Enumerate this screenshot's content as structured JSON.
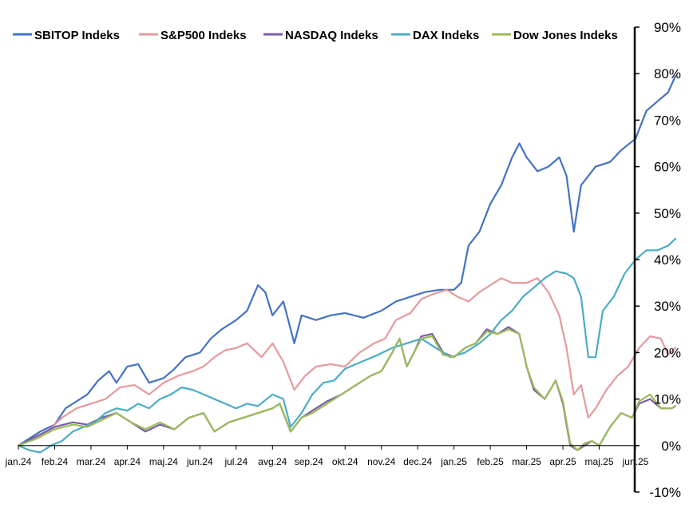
{
  "chart_data": {
    "type": "line",
    "title": "",
    "xlabel": "",
    "ylabel": "",
    "x_tick_labels": [
      "jan.24",
      "feb.24",
      "mar.24",
      "apr.24",
      "maj.24",
      "jun.24",
      "jul.24",
      "avg.24",
      "sep.24",
      "okt.24",
      "nov.24",
      "dec.24",
      "jan.25",
      "feb.25",
      "mar.25",
      "apr.25",
      "maj.25",
      "jun.25"
    ],
    "y_tick_labels": [
      "90%",
      "80%",
      "70%",
      "60%",
      "50%",
      "40%",
      "30%",
      "20%",
      "10%",
      "0%",
      "-10%"
    ],
    "ylim": [
      -10,
      90
    ],
    "y_unit": "%",
    "y_axis_position": "right",
    "legend_position": "top",
    "grid": false,
    "series": [
      {
        "name": "SBITOP Indeks",
        "color": "#4472C4",
        "points": [
          [
            0,
            0
          ],
          [
            0.3,
            1.5
          ],
          [
            0.6,
            3
          ],
          [
            1,
            4.5
          ],
          [
            1.3,
            8
          ],
          [
            1.6,
            9.5
          ],
          [
            1.9,
            11
          ],
          [
            2.2,
            14
          ],
          [
            2.5,
            16
          ],
          [
            2.7,
            13.5
          ],
          [
            3,
            17
          ],
          [
            3.3,
            17.5
          ],
          [
            3.6,
            13.5
          ],
          [
            4,
            14.5
          ],
          [
            4.3,
            16.5
          ],
          [
            4.6,
            19
          ],
          [
            5,
            20
          ],
          [
            5.3,
            23
          ],
          [
            5.6,
            25
          ],
          [
            6,
            27
          ],
          [
            6.3,
            29
          ],
          [
            6.6,
            34.5
          ],
          [
            6.8,
            33
          ],
          [
            7,
            28
          ],
          [
            7.3,
            31
          ],
          [
            7.6,
            22
          ],
          [
            7.8,
            28
          ],
          [
            8.2,
            27
          ],
          [
            8.6,
            28
          ],
          [
            9,
            28.5
          ],
          [
            9.5,
            27.5
          ],
          [
            10,
            29
          ],
          [
            10.4,
            31
          ],
          [
            10.8,
            32
          ],
          [
            11.2,
            33
          ],
          [
            11.6,
            33.5
          ],
          [
            12,
            33.5
          ],
          [
            12.2,
            35
          ],
          [
            12.4,
            43
          ],
          [
            12.7,
            46
          ],
          [
            13,
            52
          ],
          [
            13.3,
            56
          ],
          [
            13.6,
            62
          ],
          [
            13.8,
            65
          ],
          [
            14,
            62
          ],
          [
            14.3,
            59
          ],
          [
            14.6,
            60
          ],
          [
            14.9,
            62
          ],
          [
            15.1,
            58
          ],
          [
            15.3,
            46
          ],
          [
            15.5,
            56
          ],
          [
            15.9,
            60
          ],
          [
            16.3,
            61
          ],
          [
            16.6,
            63.5
          ],
          [
            17,
            66
          ],
          [
            17.3,
            72
          ],
          [
            17.6,
            74
          ],
          [
            17.9,
            76
          ],
          [
            18.1,
            79.5
          ]
        ]
      },
      {
        "name": "S&P500 Indeks",
        "color": "#E7999D",
        "points": [
          [
            0,
            0
          ],
          [
            0.4,
            1.5
          ],
          [
            0.8,
            3
          ],
          [
            1.2,
            6
          ],
          [
            1.6,
            8
          ],
          [
            2,
            9
          ],
          [
            2.4,
            10
          ],
          [
            2.8,
            12.5
          ],
          [
            3.2,
            13
          ],
          [
            3.6,
            11
          ],
          [
            4,
            13.5
          ],
          [
            4.4,
            15
          ],
          [
            4.8,
            16
          ],
          [
            5.1,
            17
          ],
          [
            5.4,
            19
          ],
          [
            5.7,
            20.5
          ],
          [
            6,
            21
          ],
          [
            6.3,
            22
          ],
          [
            6.7,
            19
          ],
          [
            7,
            22
          ],
          [
            7.3,
            18
          ],
          [
            7.6,
            12
          ],
          [
            7.9,
            15
          ],
          [
            8.2,
            17
          ],
          [
            8.6,
            17.5
          ],
          [
            9,
            17
          ],
          [
            9.4,
            20
          ],
          [
            9.8,
            22
          ],
          [
            10.1,
            23
          ],
          [
            10.4,
            27
          ],
          [
            10.8,
            28.5
          ],
          [
            11.1,
            31.5
          ],
          [
            11.4,
            32.5
          ],
          [
            11.8,
            33.5
          ],
          [
            12.1,
            32
          ],
          [
            12.4,
            31
          ],
          [
            12.7,
            33
          ],
          [
            13,
            34.5
          ],
          [
            13.3,
            36
          ],
          [
            13.6,
            35
          ],
          [
            14,
            35
          ],
          [
            14.3,
            36
          ],
          [
            14.6,
            33
          ],
          [
            14.9,
            28
          ],
          [
            15.1,
            21
          ],
          [
            15.3,
            11
          ],
          [
            15.5,
            13
          ],
          [
            15.7,
            6
          ],
          [
            15.9,
            8
          ],
          [
            16.2,
            12
          ],
          [
            16.5,
            15
          ],
          [
            16.8,
            17
          ],
          [
            17.1,
            21
          ],
          [
            17.4,
            23.5
          ],
          [
            17.7,
            23
          ],
          [
            17.9,
            19.5
          ],
          [
            18.1,
            21
          ]
        ]
      },
      {
        "name": "NASDAQ Indeks",
        "color": "#7A5EA8",
        "points": [
          [
            0,
            0
          ],
          [
            0.5,
            2
          ],
          [
            1,
            4
          ],
          [
            1.5,
            5
          ],
          [
            1.9,
            4.5
          ],
          [
            2.3,
            6
          ],
          [
            2.7,
            7
          ],
          [
            3.1,
            5
          ],
          [
            3.5,
            3
          ],
          [
            3.9,
            4.5
          ],
          [
            4.3,
            3.5
          ],
          [
            4.7,
            6
          ],
          [
            5.1,
            7
          ],
          [
            5.4,
            3
          ],
          [
            5.8,
            5
          ],
          [
            6.2,
            6
          ],
          [
            6.6,
            7
          ],
          [
            7,
            8
          ],
          [
            7.2,
            9
          ],
          [
            7.5,
            3
          ],
          [
            7.8,
            6
          ],
          [
            8.1,
            7.5
          ],
          [
            8.5,
            9.5
          ],
          [
            8.9,
            11
          ],
          [
            9.3,
            13
          ],
          [
            9.7,
            15
          ],
          [
            10,
            16
          ],
          [
            10.3,
            20
          ],
          [
            10.5,
            23
          ],
          [
            10.7,
            17
          ],
          [
            10.9,
            20
          ],
          [
            11.1,
            23.5
          ],
          [
            11.4,
            24
          ],
          [
            11.7,
            20
          ],
          [
            12,
            19
          ],
          [
            12.3,
            21
          ],
          [
            12.6,
            22
          ],
          [
            12.9,
            25
          ],
          [
            13.2,
            24
          ],
          [
            13.5,
            25.5
          ],
          [
            13.8,
            24
          ],
          [
            14,
            17
          ],
          [
            14.2,
            12
          ],
          [
            14.5,
            10
          ],
          [
            14.8,
            14
          ],
          [
            15,
            9
          ],
          [
            15.2,
            0
          ],
          [
            15.4,
            -1
          ],
          [
            15.6,
            0
          ],
          [
            15.8,
            1
          ],
          [
            16,
            0
          ],
          [
            16.3,
            4
          ],
          [
            16.6,
            7
          ],
          [
            16.9,
            6
          ],
          [
            17.1,
            9
          ],
          [
            17.4,
            10
          ],
          [
            17.7,
            8
          ],
          [
            18,
            8
          ],
          [
            18.1,
            8.5
          ]
        ]
      },
      {
        "name": "DAX Indeks",
        "color": "#4BACC6",
        "points": [
          [
            0,
            0
          ],
          [
            0.3,
            -1
          ],
          [
            0.6,
            -1.5
          ],
          [
            0.9,
            0
          ],
          [
            1.2,
            1
          ],
          [
            1.5,
            3
          ],
          [
            1.8,
            4
          ],
          [
            2.1,
            5
          ],
          [
            2.4,
            7
          ],
          [
            2.7,
            8
          ],
          [
            3,
            7.5
          ],
          [
            3.3,
            9
          ],
          [
            3.6,
            8
          ],
          [
            3.9,
            10
          ],
          [
            4.2,
            11
          ],
          [
            4.5,
            12.5
          ],
          [
            4.8,
            12
          ],
          [
            5.1,
            11
          ],
          [
            5.4,
            10
          ],
          [
            5.7,
            9
          ],
          [
            6,
            8
          ],
          [
            6.3,
            9
          ],
          [
            6.6,
            8.5
          ],
          [
            7,
            11
          ],
          [
            7.3,
            10
          ],
          [
            7.5,
            4
          ],
          [
            7.8,
            7
          ],
          [
            8.1,
            11
          ],
          [
            8.4,
            13.5
          ],
          [
            8.7,
            14
          ],
          [
            9,
            16.5
          ],
          [
            9.3,
            17.5
          ],
          [
            9.6,
            18.5
          ],
          [
            9.9,
            19.5
          ],
          [
            10.3,
            21
          ],
          [
            10.7,
            22
          ],
          [
            11.1,
            23
          ],
          [
            11.5,
            21
          ],
          [
            11.9,
            19
          ],
          [
            12.3,
            20
          ],
          [
            12.7,
            22
          ],
          [
            13,
            24
          ],
          [
            13.3,
            27
          ],
          [
            13.6,
            29
          ],
          [
            13.9,
            32
          ],
          [
            14.2,
            34
          ],
          [
            14.5,
            36
          ],
          [
            14.8,
            37.5
          ],
          [
            15.1,
            37
          ],
          [
            15.3,
            36
          ],
          [
            15.5,
            32
          ],
          [
            15.7,
            19
          ],
          [
            15.9,
            19
          ],
          [
            16.1,
            29
          ],
          [
            16.4,
            32
          ],
          [
            16.7,
            37
          ],
          [
            17,
            40
          ],
          [
            17.3,
            42
          ],
          [
            17.6,
            42
          ],
          [
            17.9,
            43
          ],
          [
            18.1,
            44.5
          ]
        ]
      },
      {
        "name": "Dow Jones Indeks",
        "color": "#9BBB59",
        "points": [
          [
            0,
            0
          ],
          [
            0.5,
            1.5
          ],
          [
            1,
            3.5
          ],
          [
            1.5,
            4.5
          ],
          [
            1.9,
            4
          ],
          [
            2.3,
            5.5
          ],
          [
            2.7,
            7
          ],
          [
            3.1,
            5
          ],
          [
            3.5,
            3.5
          ],
          [
            3.9,
            5
          ],
          [
            4.3,
            3.5
          ],
          [
            4.7,
            6
          ],
          [
            5.1,
            7
          ],
          [
            5.4,
            3
          ],
          [
            5.8,
            5
          ],
          [
            6.2,
            6
          ],
          [
            6.6,
            7
          ],
          [
            7,
            8
          ],
          [
            7.2,
            9
          ],
          [
            7.5,
            3
          ],
          [
            7.8,
            6
          ],
          [
            8.1,
            7
          ],
          [
            8.5,
            9
          ],
          [
            8.9,
            11
          ],
          [
            9.3,
            13
          ],
          [
            9.7,
            15
          ],
          [
            10,
            16
          ],
          [
            10.3,
            20
          ],
          [
            10.5,
            23
          ],
          [
            10.7,
            17
          ],
          [
            10.9,
            20
          ],
          [
            11.1,
            23
          ],
          [
            11.4,
            23.5
          ],
          [
            11.7,
            19.5
          ],
          [
            12,
            19
          ],
          [
            12.3,
            21
          ],
          [
            12.6,
            22
          ],
          [
            12.9,
            24.5
          ],
          [
            13.2,
            24
          ],
          [
            13.5,
            25
          ],
          [
            13.8,
            24
          ],
          [
            14,
            17
          ],
          [
            14.2,
            12.5
          ],
          [
            14.5,
            10
          ],
          [
            14.8,
            14
          ],
          [
            15,
            9.5
          ],
          [
            15.2,
            0.5
          ],
          [
            15.4,
            -1
          ],
          [
            15.6,
            0.5
          ],
          [
            15.8,
            1
          ],
          [
            16,
            0
          ],
          [
            16.3,
            4
          ],
          [
            16.6,
            7
          ],
          [
            16.9,
            6
          ],
          [
            17.1,
            9.5
          ],
          [
            17.4,
            11
          ],
          [
            17.7,
            8
          ],
          [
            18,
            8
          ],
          [
            18.1,
            8.5
          ]
        ]
      }
    ]
  }
}
